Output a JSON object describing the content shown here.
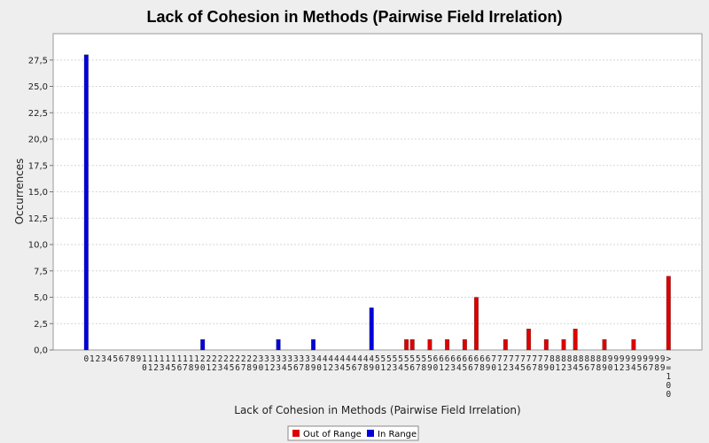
{
  "chart_data": {
    "type": "bar",
    "title": "Lack of Cohesion in Methods (Pairwise Field Irrelation)",
    "xlabel": "Lack of Cohesion in Methods (Pairwise Field Irrelation)",
    "ylabel": "Occurrences",
    "ylim": [
      0,
      30
    ],
    "yticks": [
      "0,0",
      "2,5",
      "5,0",
      "7,5",
      "10,0",
      "12,5",
      "15,0",
      "17,5",
      "20,0",
      "22,5",
      "25,0",
      "27,5"
    ],
    "categories": [
      "0",
      "1",
      "2",
      "3",
      "4",
      "5",
      "6",
      "7",
      "8",
      "9",
      "10",
      "11",
      "12",
      "13",
      "14",
      "15",
      "16",
      "17",
      "18",
      "19",
      "20",
      "21",
      "22",
      "23",
      "24",
      "25",
      "26",
      "27",
      "28",
      "29",
      "30",
      "31",
      "32",
      "33",
      "34",
      "35",
      "36",
      "37",
      "38",
      "39",
      "40",
      "41",
      "42",
      "43",
      "44",
      "45",
      "46",
      "47",
      "48",
      "49",
      "50",
      "51",
      "52",
      "53",
      "54",
      "55",
      "56",
      "57",
      "58",
      "59",
      "60",
      "61",
      "62",
      "63",
      "64",
      "65",
      "66",
      "67",
      "68",
      "69",
      "70",
      "71",
      "72",
      "73",
      "74",
      "75",
      "76",
      "77",
      "78",
      "79",
      "80",
      "81",
      "82",
      "83",
      "84",
      "85",
      "86",
      "87",
      "88",
      "89",
      "90",
      "91",
      "92",
      "93",
      "94",
      "95",
      "96",
      "97",
      "98",
      "99",
      ">=100"
    ],
    "series": [
      {
        "name": "Out of Range",
        "color": "#dd0000",
        "values": [
          0,
          0,
          0,
          0,
          0,
          0,
          0,
          0,
          0,
          0,
          0,
          0,
          0,
          0,
          0,
          0,
          0,
          0,
          0,
          0,
          0,
          0,
          0,
          0,
          0,
          0,
          0,
          0,
          0,
          0,
          0,
          0,
          0,
          0,
          0,
          0,
          0,
          0,
          0,
          0,
          0,
          0,
          0,
          0,
          0,
          0,
          0,
          0,
          0,
          0,
          0,
          0,
          0,
          0,
          0,
          1,
          1,
          0,
          0,
          1,
          0,
          0,
          1,
          0,
          0,
          1,
          0,
          5,
          0,
          0,
          0,
          0,
          1,
          0,
          0,
          0,
          2,
          0,
          0,
          1,
          0,
          0,
          1,
          0,
          2,
          0,
          0,
          0,
          0,
          1,
          0,
          0,
          0,
          0,
          1,
          0,
          0,
          0,
          0,
          0,
          7
        ]
      },
      {
        "name": "In Range",
        "color": "#0000dd",
        "values": [
          28,
          0,
          0,
          0,
          0,
          0,
          0,
          0,
          0,
          0,
          0,
          0,
          0,
          0,
          0,
          0,
          0,
          0,
          0,
          0,
          1,
          0,
          0,
          0,
          0,
          0,
          0,
          0,
          0,
          0,
          0,
          0,
          0,
          1,
          0,
          0,
          0,
          0,
          0,
          1,
          0,
          0,
          0,
          0,
          0,
          0,
          0,
          0,
          0,
          4,
          0,
          0,
          0,
          0,
          0,
          0,
          0,
          0,
          0,
          0,
          0,
          0,
          0,
          0,
          0,
          0,
          0,
          0,
          0,
          0,
          0,
          0,
          0,
          0,
          0,
          0,
          0,
          0,
          0,
          0,
          0,
          0,
          0,
          0,
          0,
          0,
          0,
          0,
          0,
          0,
          0,
          0,
          0,
          0,
          0,
          0,
          0,
          0,
          0,
          0,
          0
        ]
      }
    ],
    "grid": true,
    "legend_position": "bottom"
  }
}
